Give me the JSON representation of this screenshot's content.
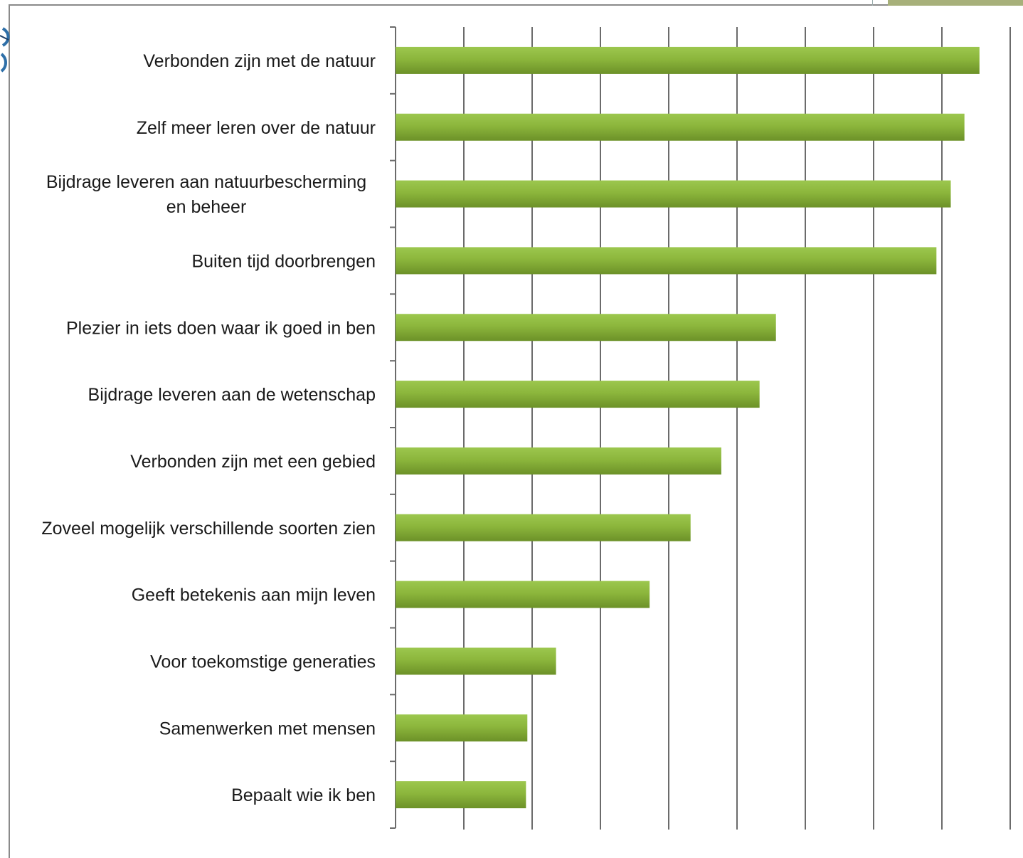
{
  "chart_data": {
    "type": "bar",
    "orientation": "horizontal",
    "categories": [
      [
        "Verbonden zijn met de natuur"
      ],
      [
        "Zelf meer leren over de natuur"
      ],
      [
        "Bijdrage leveren aan natuurbescherming",
        "en beheer"
      ],
      [
        "Buiten tijd doorbrengen"
      ],
      [
        "Plezier in iets doen waar ik goed in ben"
      ],
      [
        "Bijdrage leveren aan de wetenschap"
      ],
      [
        "Verbonden zijn met een gebied"
      ],
      [
        "Zoveel mogelijk verschillende soorten zien"
      ],
      [
        "Geeft betekenis aan mijn leven"
      ],
      [
        "Voor toekomstige generaties"
      ],
      [
        "Samenwerken met mensen"
      ],
      [
        "Bepaalt wie ik ben"
      ]
    ],
    "values": [
      8.55,
      8.33,
      8.13,
      7.92,
      5.57,
      5.33,
      4.77,
      4.32,
      3.72,
      2.35,
      1.93,
      1.91
    ],
    "xlim": [
      0,
      9
    ],
    "x_gridlines": 9,
    "grid": true,
    "legend": "none",
    "bar_color": "#8cb63c",
    "title": "",
    "xlabel": "",
    "ylabel": ""
  }
}
